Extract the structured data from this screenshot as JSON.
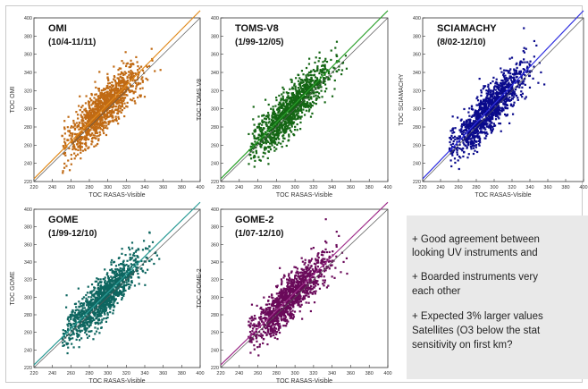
{
  "chart_data": [
    {
      "type": "scatter",
      "title": "OMI",
      "subtitle": "(10/4-11/11)",
      "xlabel": "TOC RASAS-Visible",
      "ylabel": "TOC OMI",
      "xlim": [
        220,
        400
      ],
      "ylim": [
        220,
        400
      ],
      "xticks": [
        220,
        240,
        260,
        280,
        300,
        320,
        340,
        360,
        380,
        400
      ],
      "yticks": [
        220,
        240,
        260,
        280,
        300,
        320,
        340,
        360,
        380,
        400
      ],
      "color": "#c06a14",
      "fit_color": "#e08a1c",
      "cloud_center": [
        295,
        300
      ],
      "cloud_x_range": [
        250,
        360
      ],
      "n_points": 1200
    },
    {
      "type": "scatter",
      "title": "TOMS-V8",
      "subtitle": "(1/99-12/05)",
      "xlabel": "TOC RASAS-Visible",
      "ylabel": "TOC TOMS V8",
      "xlim": [
        220,
        400
      ],
      "ylim": [
        220,
        400
      ],
      "xticks": [
        220,
        240,
        260,
        280,
        300,
        320,
        340,
        360,
        380,
        400
      ],
      "yticks": [
        220,
        240,
        260,
        280,
        300,
        320,
        340,
        360,
        380,
        400
      ],
      "color": "#146614",
      "fit_color": "#2aa02a",
      "cloud_center": [
        295,
        300
      ],
      "cloud_x_range": [
        250,
        360
      ],
      "n_points": 1200
    },
    {
      "type": "scatter",
      "title": "SCIAMACHY",
      "subtitle": "(8/02-12/10)",
      "xlabel": "TOC RASAS-Visible",
      "ylabel": "TOC SCIAMACHY",
      "xlim": [
        220,
        400
      ],
      "ylim": [
        220,
        400
      ],
      "xticks": [
        220,
        240,
        260,
        280,
        300,
        320,
        340,
        360,
        380,
        400
      ],
      "yticks": [
        220,
        240,
        260,
        280,
        300,
        320,
        340,
        360,
        380,
        400
      ],
      "color": "#0a0a8c",
      "fit_color": "#3030e0",
      "cloud_center": [
        295,
        300
      ],
      "cloud_x_range": [
        250,
        360
      ],
      "n_points": 1200
    },
    {
      "type": "scatter",
      "title": "GOME",
      "subtitle": "(1/99-12/10)",
      "xlabel": "TOC RASAS-Visible",
      "ylabel": "TOC GOME",
      "xlim": [
        220,
        400
      ],
      "ylim": [
        220,
        400
      ],
      "xticks": [
        220,
        240,
        260,
        280,
        300,
        320,
        340,
        360,
        380,
        400
      ],
      "yticks": [
        220,
        240,
        260,
        280,
        300,
        320,
        340,
        360,
        380,
        400
      ],
      "color": "#0e6660",
      "fit_color": "#2a9a95",
      "cloud_center": [
        295,
        300
      ],
      "cloud_x_range": [
        250,
        360
      ],
      "n_points": 1200
    },
    {
      "type": "scatter",
      "title": "GOME-2",
      "subtitle": "(1/07-12/10)",
      "xlabel": "TOC RASAS-Visible",
      "ylabel": "TOC GOME-2",
      "xlim": [
        220,
        400
      ],
      "ylim": [
        220,
        400
      ],
      "xticks": [
        220,
        240,
        260,
        280,
        300,
        320,
        340,
        360,
        380,
        400
      ],
      "yticks": [
        220,
        240,
        260,
        280,
        300,
        320,
        340,
        360,
        380,
        400
      ],
      "color": "#6a0a5a",
      "fit_color": "#a0308c",
      "cloud_center": [
        295,
        300
      ],
      "cloud_x_range": [
        250,
        360
      ],
      "n_points": 1200
    }
  ],
  "notes": {
    "line1": "+ Good agreement  between",
    "line2": "looking UV instruments and",
    "line3": "+ Boarded instruments very",
    "line4": "each other",
    "line5": "+ Expected 3% larger values",
    "line6": "Satellites  (O3 below the stat",
    "line7": "sensitivity on first km?"
  }
}
